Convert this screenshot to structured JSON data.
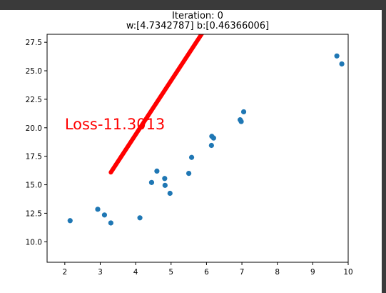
{
  "chart_data": {
    "type": "scatter",
    "title_lines": [
      "Iteration: 0",
      "w:[4.7342787] b:[0.46366006]"
    ],
    "annotation": {
      "text": "Loss-11.3013",
      "color": "#ff0000",
      "x": 2.0,
      "y": 20.3
    },
    "xlim": [
      1.5,
      10.0
    ],
    "ylim": [
      8.2,
      28.2
    ],
    "x_ticks": [
      2,
      3,
      4,
      5,
      6,
      7,
      8,
      9,
      10
    ],
    "y_ticks": [
      10.0,
      12.5,
      15.0,
      17.5,
      20.0,
      22.5,
      25.0,
      27.5
    ],
    "y_tick_labels": [
      "10.0",
      "12.5",
      "15.0",
      "17.5",
      "20.0",
      "22.5",
      "25.0",
      "27.5"
    ],
    "points_color": "#1f77b4",
    "points": [
      [
        2.15,
        11.85
      ],
      [
        2.93,
        12.85
      ],
      [
        3.12,
        12.35
      ],
      [
        3.3,
        11.65
      ],
      [
        4.12,
        12.1
      ],
      [
        4.45,
        15.2
      ],
      [
        4.6,
        16.2
      ],
      [
        4.82,
        15.55
      ],
      [
        4.83,
        14.95
      ],
      [
        4.97,
        14.25
      ],
      [
        5.5,
        16.0
      ],
      [
        5.58,
        17.4
      ],
      [
        6.14,
        18.45
      ],
      [
        6.15,
        19.25
      ],
      [
        6.2,
        19.1
      ],
      [
        6.95,
        20.7
      ],
      [
        6.98,
        20.55
      ],
      [
        7.05,
        21.4
      ],
      [
        9.68,
        26.3
      ],
      [
        9.82,
        25.6
      ]
    ],
    "line": {
      "color": "#ff0000",
      "w": 4.7342787,
      "b": 0.46366006,
      "x_range": [
        3.3,
        9.9
      ]
    }
  }
}
